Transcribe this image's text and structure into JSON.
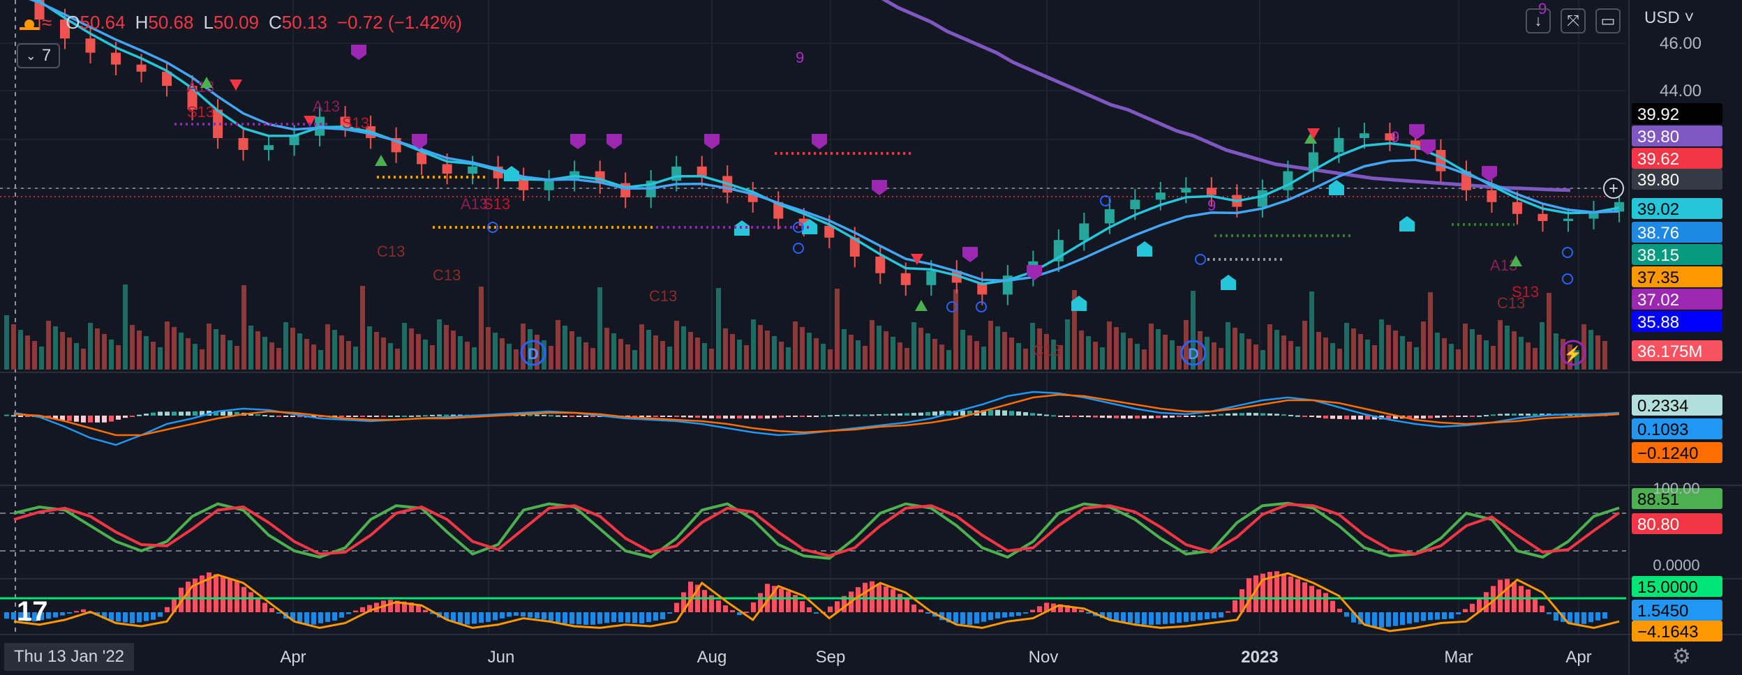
{
  "ohlc": {
    "o_label": "O",
    "o": "50.64",
    "h_label": "H",
    "h": "50.68",
    "l_label": "L",
    "l": "50.09",
    "c_label": "C",
    "c": "50.13",
    "change": "−0.72 (−1.42%)"
  },
  "toolbar": {
    "currency": "USD",
    "collapse_count": "7"
  },
  "crosshair": {
    "date": "Thu 13 Jan '22"
  },
  "colors": {
    "bg": "#131722",
    "up": "#26a69a",
    "down": "#ef5350",
    "ema200": "#7e57c2",
    "ema_a": "#42a5f5",
    "ema_b": "#26c6da",
    "grid": "#1e222d"
  },
  "chart_data": [
    {
      "type": "line",
      "name": "price",
      "x_ticks": [
        "Apr",
        "Jun",
        "Aug",
        "Sep",
        "Nov",
        "2023",
        "Mar",
        "Apr"
      ],
      "y_ticks": [
        "46.00",
        "44.00"
      ],
      "price_badges": [
        {
          "label": "39.92",
          "bg": "#000000",
          "fg": "#ffffff"
        },
        {
          "label": "39.80",
          "bg": "#7e57c2",
          "fg": "#ffffff"
        },
        {
          "label": "39.62",
          "bg": "#f23645",
          "fg": "#ffffff"
        },
        {
          "label": "39.80",
          "bg": "#363a45",
          "fg": "#ffffff"
        },
        {
          "label": "39.02",
          "bg": "#26c6da",
          "fg": "#000000"
        },
        {
          "label": "38.76",
          "bg": "#1e88e5",
          "fg": "#ffffff"
        },
        {
          "label": "38.15",
          "bg": "#089981",
          "fg": "#ffffff"
        },
        {
          "label": "37.35",
          "bg": "#ff9800",
          "fg": "#000000"
        },
        {
          "label": "37.02",
          "bg": "#9c27b0",
          "fg": "#ffffff"
        },
        {
          "label": "35.88",
          "bg": "#0000ff",
          "fg": "#ffffff"
        },
        {
          "label": "36.175M",
          "bg": "#f7525f",
          "fg": "#ffffff"
        }
      ],
      "text_marks": [
        "A13",
        "S13",
        "A13",
        "S13",
        "A13",
        "S13",
        "C13",
        "C13",
        "C13",
        "9",
        "9",
        "9",
        "9",
        "A13",
        "S13",
        "C13",
        "C13"
      ],
      "event_marks": [
        "D",
        "D"
      ],
      "ema200": [
        55.2,
        54.9,
        54.6,
        54.2,
        53.8,
        53.4,
        53.1,
        52.8,
        52.4,
        52.1,
        51.7,
        51.4,
        51.0,
        50.7,
        50.3,
        50.0,
        49.6,
        49.3,
        48.9,
        48.6,
        48.2,
        47.9,
        47.5,
        47.2,
        46.9,
        46.5,
        46.2,
        45.9,
        45.6,
        45.2,
        44.9,
        44.6,
        44.3,
        44.0,
        43.7,
        43.4,
        43.2,
        42.9,
        42.6,
        42.3,
        42.1,
        41.8,
        41.5,
        41.3,
        41.1,
        40.9,
        40.8,
        40.7,
        40.6,
        40.5,
        40.4,
        40.3,
        40.25,
        40.2,
        40.15,
        40.1,
        40.05,
        40.0,
        39.95,
        39.9,
        39.88,
        39.85,
        39.82,
        39.8
      ],
      "close": [
        48.4,
        47.0,
        46.2,
        45.6,
        45.1,
        44.8,
        44.2,
        43.2,
        42.0,
        41.5,
        41.7,
        42.1,
        42.9,
        42.5,
        42.0,
        41.4,
        40.9,
        40.5,
        40.8,
        40.3,
        39.8,
        40.2,
        40.6,
        40.1,
        39.5,
        40.2,
        40.8,
        40.4,
        39.7,
        39.3,
        38.6,
        38.3,
        37.8,
        37.0,
        36.3,
        35.8,
        36.4,
        35.9,
        35.4,
        36.2,
        36.8,
        37.7,
        38.4,
        39.0,
        39.4,
        39.7,
        39.9,
        39.6,
        39.1,
        39.8,
        40.6,
        41.4,
        42.0,
        42.2,
        41.9,
        41.5,
        40.6,
        39.8,
        39.3,
        38.8,
        38.5,
        38.6,
        38.9,
        39.3
      ],
      "vol_scale": "36.175M"
    },
    {
      "type": "bar",
      "name": "macd",
      "badges": [
        {
          "label": "0.2334",
          "bg": "#b2dfdb",
          "fg": "#000000"
        },
        {
          "label": "0.1093",
          "bg": "#2196f3",
          "fg": "#000000"
        },
        {
          "label": "−0.1240",
          "bg": "#ff6d00",
          "fg": "#000000"
        }
      ],
      "macd": [
        0.2,
        -0.1,
        -0.8,
        -1.6,
        -2.1,
        -1.4,
        -0.6,
        -0.2,
        0.3,
        0.5,
        0.4,
        0.1,
        -0.2,
        -0.3,
        -0.4,
        -0.3,
        -0.2,
        -0.1,
        0.0,
        0.1,
        0.2,
        0.3,
        0.2,
        0.0,
        -0.2,
        -0.3,
        -0.4,
        -0.6,
        -0.9,
        -1.2,
        -1.4,
        -1.3,
        -1.1,
        -0.9,
        -0.7,
        -0.5,
        -0.2,
        0.3,
        0.8,
        1.4,
        1.7,
        1.6,
        1.3,
        0.9,
        0.5,
        0.2,
        0.1,
        0.3,
        0.7,
        1.1,
        1.3,
        1.1,
        0.6,
        0.1,
        -0.3,
        -0.6,
        -0.8,
        -0.7,
        -0.5,
        -0.2,
        0.0,
        0.1,
        0.1,
        0.2
      ],
      "signal": [
        0.1,
        0.0,
        -0.4,
        -0.9,
        -1.4,
        -1.4,
        -1.0,
        -0.6,
        -0.2,
        0.1,
        0.3,
        0.2,
        0.0,
        -0.2,
        -0.3,
        -0.3,
        -0.2,
        -0.2,
        -0.1,
        0.0,
        0.1,
        0.2,
        0.2,
        0.1,
        -0.1,
        -0.2,
        -0.3,
        -0.4,
        -0.6,
        -0.9,
        -1.1,
        -1.2,
        -1.1,
        -1.0,
        -0.8,
        -0.7,
        -0.5,
        -0.2,
        0.3,
        0.8,
        1.3,
        1.5,
        1.4,
        1.1,
        0.8,
        0.5,
        0.3,
        0.3,
        0.5,
        0.8,
        1.1,
        1.1,
        0.9,
        0.5,
        0.1,
        -0.3,
        -0.5,
        -0.6,
        -0.5,
        -0.4,
        -0.2,
        -0.1,
        0.0,
        0.1
      ]
    },
    {
      "type": "line",
      "name": "stochastic",
      "y_ticks": [
        "100.00",
        "0.0000"
      ],
      "badges": [
        {
          "label": "88.51",
          "bg": "#4caf50",
          "fg": "#000000"
        },
        {
          "label": "80.80",
          "bg": "#f23645",
          "fg": "#ffffff"
        }
      ],
      "k": [
        80,
        90,
        85,
        60,
        35,
        20,
        35,
        75,
        95,
        85,
        45,
        20,
        10,
        25,
        70,
        92,
        88,
        50,
        15,
        30,
        85,
        95,
        90,
        55,
        20,
        10,
        40,
        85,
        95,
        70,
        30,
        12,
        8,
        40,
        80,
        95,
        88,
        60,
        25,
        10,
        35,
        80,
        95,
        90,
        70,
        40,
        15,
        20,
        65,
        92,
        96,
        88,
        60,
        25,
        12,
        15,
        40,
        80,
        70,
        20,
        10,
        35,
        75,
        88.5
      ],
      "d": [
        70,
        82,
        88,
        75,
        50,
        30,
        28,
        55,
        85,
        90,
        65,
        35,
        15,
        18,
        45,
        80,
        90,
        70,
        35,
        22,
        55,
        88,
        92,
        75,
        40,
        18,
        28,
        65,
        88,
        82,
        50,
        22,
        12,
        25,
        60,
        88,
        92,
        75,
        45,
        20,
        25,
        60,
        88,
        92,
        82,
        58,
        30,
        18,
        42,
        78,
        94,
        92,
        78,
        45,
        22,
        15,
        28,
        60,
        74,
        45,
        18,
        22,
        52,
        80.8
      ]
    },
    {
      "type": "bar",
      "name": "oscillator",
      "badges": [
        {
          "label": "15.0000",
          "bg": "#00e676",
          "fg": "#000000"
        },
        {
          "label": "1.5450",
          "bg": "#2196f3",
          "fg": "#000000"
        },
        {
          "label": "−4.1643",
          "bg": "#ff9800",
          "fg": "#000000"
        }
      ],
      "hist": [
        -4,
        -6,
        -3,
        2,
        -5,
        -7,
        -4,
        18,
        25,
        20,
        8,
        -4,
        -8,
        -5,
        3,
        8,
        6,
        -3,
        -8,
        -6,
        -2,
        -4,
        -7,
        -8,
        -6,
        -7,
        -4,
        20,
        8,
        -3,
        18,
        12,
        -2,
        10,
        20,
        14,
        2,
        -6,
        -8,
        -4,
        -2,
        6,
        4,
        -3,
        -6,
        -8,
        -7,
        -5,
        -3,
        22,
        26,
        20,
        12,
        -6,
        -10,
        -8,
        -5,
        -4,
        8,
        22,
        14,
        -5,
        -8,
        -4
      ]
    }
  ]
}
